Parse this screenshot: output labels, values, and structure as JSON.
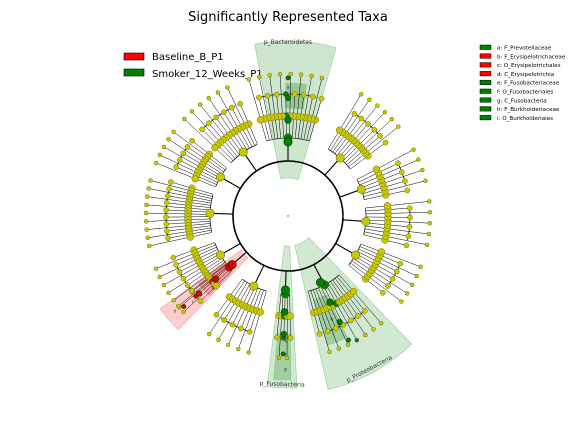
{
  "title": "Significantly Represented Taxa",
  "groups": [
    {
      "name": "Baseline_B_P1",
      "color": "#ff0000"
    },
    {
      "name": "Smoker_12_Weeks_P1",
      "color": "#008000"
    }
  ],
  "key": [
    {
      "letter": "a",
      "label": "a: F_Prevotellaceae",
      "group": 1
    },
    {
      "letter": "b",
      "label": "b: F_Erysipelotrichaceae",
      "group": 0
    },
    {
      "letter": "c",
      "label": "c: O_Erysipelotrichales",
      "group": 0
    },
    {
      "letter": "d",
      "label": "d: C_Erysipelotrichia",
      "group": 0
    },
    {
      "letter": "e",
      "label": "e: F_Fusobacteriaceae",
      "group": 1
    },
    {
      "letter": "f",
      "label": "f: O_Fusobacteriales",
      "group": 1
    },
    {
      "letter": "g",
      "label": "g: C_Fusobacteria",
      "group": 1
    },
    {
      "letter": "h",
      "label": "h: F_Burkholderiaceae",
      "group": 1
    },
    {
      "letter": "i",
      "label": "i: O_Burkholderiales",
      "group": 1
    }
  ],
  "clades": [
    {
      "label": "p_Bacteroidetes",
      "group": 1
    },
    {
      "label": "p_Fusobacteria",
      "group": 1
    },
    {
      "label": "p_Proteobacteria",
      "group": 1
    }
  ],
  "colors": {
    "node_default": "#c8c800",
    "node_edge": "#555500",
    "smoker_fill": "#66b266",
    "baseline_fill": "#ff6666",
    "green_node": "#008000",
    "red_node": "#e00000"
  }
}
